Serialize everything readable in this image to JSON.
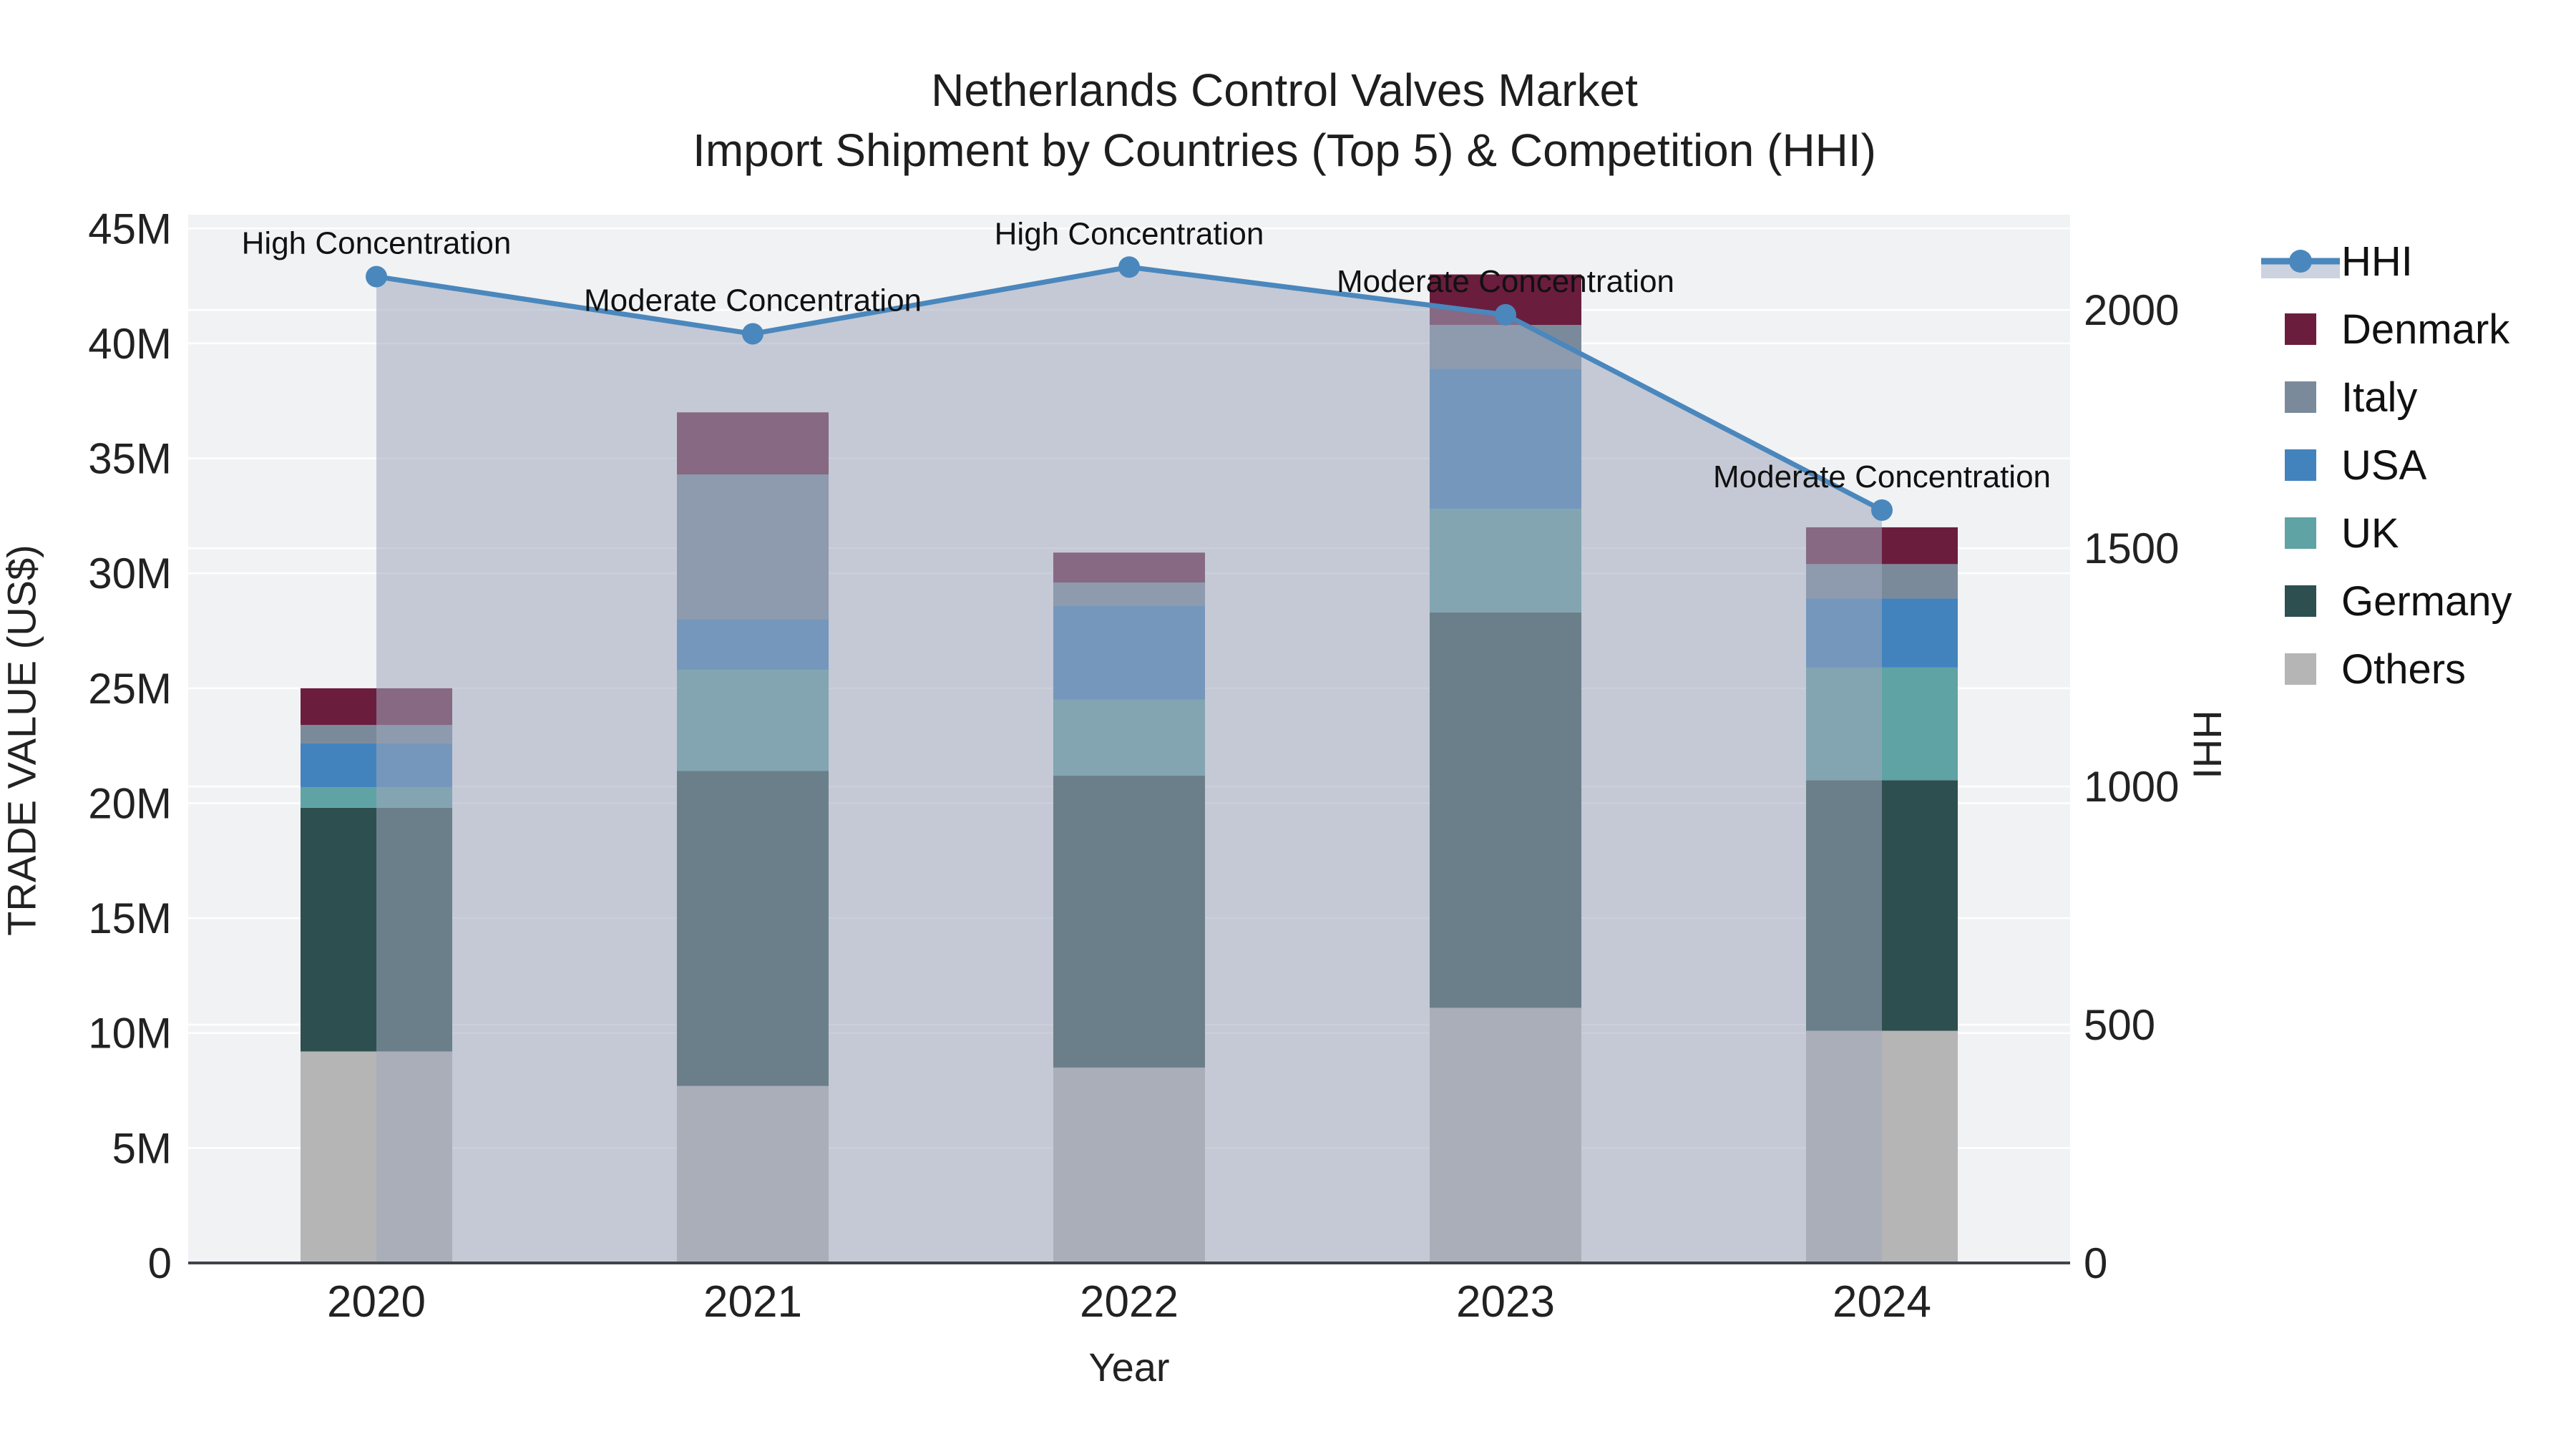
{
  "title": {
    "line1": "Netherlands Control Valves Market",
    "line2": "Import Shipment by Countries (Top 5) & Competition (HHI)"
  },
  "axes": {
    "x": {
      "title": "Year",
      "categories": [
        "2020",
        "2021",
        "2022",
        "2023",
        "2024"
      ]
    },
    "y_left": {
      "title": "TRADE VALUE (US$)",
      "tick_labels": [
        "0",
        "5M",
        "10M",
        "15M",
        "20M",
        "25M",
        "30M",
        "35M",
        "40M",
        "45M"
      ],
      "tick_values_millions": [
        0,
        5,
        10,
        15,
        20,
        25,
        30,
        35,
        40,
        45
      ]
    },
    "y_right": {
      "title": "HHI",
      "tick_labels": [
        "0",
        "500",
        "1000",
        "1500",
        "2000"
      ],
      "tick_values": [
        0,
        500,
        1000,
        1500,
        2000
      ]
    }
  },
  "legend": {
    "items": [
      {
        "id": "hhi",
        "label": "HHI",
        "type": "line",
        "color": "#4a87bd",
        "fill": "#ccd3de"
      },
      {
        "id": "denmark",
        "label": "Denmark",
        "type": "swatch",
        "color": "#6b1d3e"
      },
      {
        "id": "italy",
        "label": "Italy",
        "type": "swatch",
        "color": "#7b8a9b"
      },
      {
        "id": "usa",
        "label": "USA",
        "type": "swatch",
        "color": "#4383bd"
      },
      {
        "id": "uk",
        "label": "UK",
        "type": "swatch",
        "color": "#5fa3a5"
      },
      {
        "id": "germany",
        "label": "Germany",
        "type": "swatch",
        "color": "#2e4f4f"
      },
      {
        "id": "others",
        "label": "Others",
        "type": "swatch",
        "color": "#b5b5b5"
      }
    ]
  },
  "chart_data": {
    "type": "bar",
    "subtype": "stacked-bars-with-line-overlay",
    "categories": [
      "2020",
      "2021",
      "2022",
      "2023",
      "2024"
    ],
    "bar_value_unit": "millions US$",
    "series": [
      {
        "name": "Others",
        "color": "#b5b5b5",
        "values": [
          9.2,
          7.7,
          8.5,
          11.1,
          10.1
        ]
      },
      {
        "name": "Germany",
        "color": "#2e4f4f",
        "values": [
          10.6,
          13.7,
          12.7,
          17.2,
          10.9
        ]
      },
      {
        "name": "UK",
        "color": "#5fa3a5",
        "values": [
          0.9,
          4.4,
          3.3,
          4.5,
          4.9
        ]
      },
      {
        "name": "USA",
        "color": "#4383bd",
        "values": [
          1.9,
          2.2,
          4.1,
          6.1,
          3.0
        ]
      },
      {
        "name": "Italy",
        "color": "#7b8a9b",
        "values": [
          0.8,
          6.3,
          1.0,
          1.9,
          1.5
        ]
      },
      {
        "name": "Denmark",
        "color": "#6b1d3e",
        "values": [
          1.6,
          2.7,
          1.3,
          2.2,
          1.6
        ]
      }
    ],
    "bar_totals_millions": [
      25.0,
      37.0,
      30.9,
      43.0,
      32.0
    ],
    "line_series": {
      "name": "HHI",
      "color": "#4a87bd",
      "area_fill": "rgba(158,168,188,0.55)",
      "values": [
        2070,
        1950,
        2090,
        1990,
        1580
      ]
    },
    "annotations": [
      {
        "category": "2020",
        "text": "High Concentration"
      },
      {
        "category": "2021",
        "text": "Moderate Concentration"
      },
      {
        "category": "2022",
        "text": "High Concentration"
      },
      {
        "category": "2023",
        "text": "Moderate Concentration"
      },
      {
        "category": "2024",
        "text": "Moderate Concentration"
      }
    ],
    "ylim_left_millions": [
      0,
      45.6
    ],
    "ylim_right": [
      0,
      2200
    ],
    "grid": true,
    "legend_position": "right",
    "plot_bg": "#f1f2f4",
    "grid_color": "#ffffff",
    "axisline_color": "#3f444a",
    "text_color": "#222222"
  }
}
